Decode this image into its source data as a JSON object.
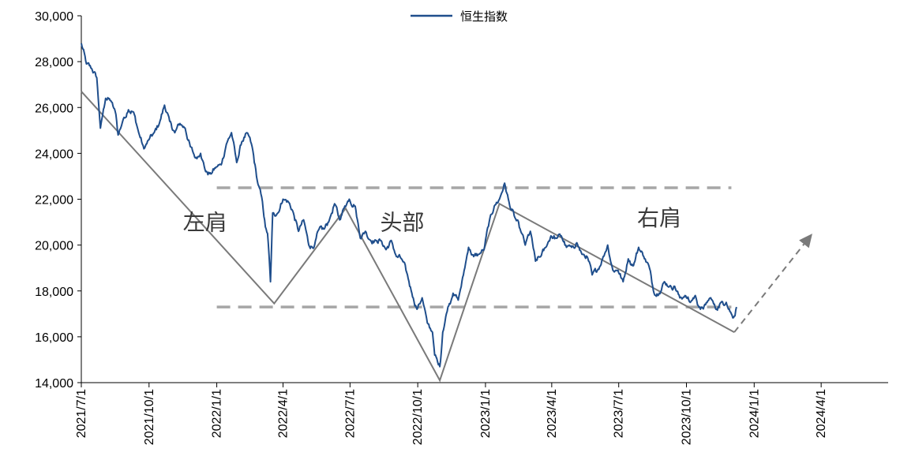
{
  "chart_data": {
    "type": "line",
    "title": "",
    "xlabel": "",
    "ylabel": "",
    "ylim": [
      14000,
      30000
    ],
    "yticks": [
      14000,
      16000,
      18000,
      20000,
      22000,
      24000,
      26000,
      28000,
      30000
    ],
    "ytick_labels": [
      "14,000",
      "16,000",
      "18,000",
      "20,000",
      "22,000",
      "24,000",
      "26,000",
      "28,000",
      "30,000"
    ],
    "xlim": [
      "2021-07-01",
      "2024-07-01"
    ],
    "xticks": [
      "2021-07-01",
      "2021-10-01",
      "2022-01-01",
      "2022-04-01",
      "2022-07-01",
      "2022-10-01",
      "2023-01-01",
      "2023-04-01",
      "2023-07-01",
      "2023-10-01",
      "2024-01-01",
      "2024-04-01"
    ],
    "xtick_labels": [
      "2021/7/1",
      "2021/10/1",
      "2022/1/1",
      "2022/4/1",
      "2022/7/1",
      "2022/10/1",
      "2023/1/1",
      "2023/4/1",
      "2023/7/1",
      "2023/10/1",
      "2024/1/1",
      "2024/4/1"
    ],
    "legend": "top-center",
    "grid": false,
    "series": [
      {
        "name": "恒生指数",
        "color": "#1f4e8c",
        "points": [
          [
            "2021-07-01",
            28800
          ],
          [
            "2021-07-08",
            27900
          ],
          [
            "2021-07-15",
            27700
          ],
          [
            "2021-07-22",
            27300
          ],
          [
            "2021-07-27",
            25100
          ],
          [
            "2021-08-03",
            26400
          ],
          [
            "2021-08-10",
            26300
          ],
          [
            "2021-08-17",
            25700
          ],
          [
            "2021-08-20",
            24800
          ],
          [
            "2021-08-27",
            25500
          ],
          [
            "2021-09-03",
            25900
          ],
          [
            "2021-09-10",
            25800
          ],
          [
            "2021-09-17",
            24900
          ],
          [
            "2021-09-24",
            24200
          ],
          [
            "2021-10-01",
            24600
          ],
          [
            "2021-10-08",
            24900
          ],
          [
            "2021-10-15",
            25300
          ],
          [
            "2021-10-22",
            26100
          ],
          [
            "2021-10-29",
            25400
          ],
          [
            "2021-11-05",
            24900
          ],
          [
            "2021-11-12",
            25300
          ],
          [
            "2021-11-19",
            25100
          ],
          [
            "2021-11-26",
            24300
          ],
          [
            "2021-12-03",
            23800
          ],
          [
            "2021-12-10",
            24000
          ],
          [
            "2021-12-17",
            23200
          ],
          [
            "2021-12-24",
            23100
          ],
          [
            "2021-12-31",
            23400
          ],
          [
            "2022-01-07",
            23500
          ],
          [
            "2022-01-14",
            24400
          ],
          [
            "2022-01-21",
            24900
          ],
          [
            "2022-01-28",
            23600
          ],
          [
            "2022-02-04",
            24500
          ],
          [
            "2022-02-11",
            24900
          ],
          [
            "2022-02-18",
            24300
          ],
          [
            "2022-02-25",
            22800
          ],
          [
            "2022-03-04",
            21900
          ],
          [
            "2022-03-08",
            20800
          ],
          [
            "2022-03-11",
            20500
          ],
          [
            "2022-03-15",
            18400
          ],
          [
            "2022-03-18",
            21400
          ],
          [
            "2022-03-25",
            21400
          ],
          [
            "2022-04-01",
            22000
          ],
          [
            "2022-04-08",
            21900
          ],
          [
            "2022-04-14",
            21500
          ],
          [
            "2022-04-22",
            20600
          ],
          [
            "2022-04-29",
            21100
          ],
          [
            "2022-05-06",
            20000
          ],
          [
            "2022-05-13",
            19900
          ],
          [
            "2022-05-20",
            20700
          ],
          [
            "2022-05-27",
            20700
          ],
          [
            "2022-06-03",
            21100
          ],
          [
            "2022-06-10",
            21800
          ],
          [
            "2022-06-17",
            21100
          ],
          [
            "2022-06-24",
            21700
          ],
          [
            "2022-06-30",
            22000
          ],
          [
            "2022-07-08",
            21700
          ],
          [
            "2022-07-15",
            20300
          ],
          [
            "2022-07-22",
            20600
          ],
          [
            "2022-07-29",
            20200
          ],
          [
            "2022-08-05",
            20200
          ],
          [
            "2022-08-12",
            20200
          ],
          [
            "2022-08-19",
            19800
          ],
          [
            "2022-08-26",
            20200
          ],
          [
            "2022-09-02",
            19500
          ],
          [
            "2022-09-09",
            19400
          ],
          [
            "2022-09-16",
            18800
          ],
          [
            "2022-09-23",
            17900
          ],
          [
            "2022-09-30",
            17200
          ],
          [
            "2022-10-07",
            17700
          ],
          [
            "2022-10-14",
            16600
          ],
          [
            "2022-10-21",
            16200
          ],
          [
            "2022-10-24",
            15200
          ],
          [
            "2022-10-28",
            14900
          ],
          [
            "2022-10-31",
            14700
          ],
          [
            "2022-11-04",
            16200
          ],
          [
            "2022-11-11",
            17300
          ],
          [
            "2022-11-18",
            17900
          ],
          [
            "2022-11-25",
            17600
          ],
          [
            "2022-12-02",
            18700
          ],
          [
            "2022-12-09",
            19900
          ],
          [
            "2022-12-16",
            19500
          ],
          [
            "2022-12-23",
            19600
          ],
          [
            "2022-12-30",
            19800
          ],
          [
            "2023-01-06",
            21000
          ],
          [
            "2023-01-13",
            21700
          ],
          [
            "2023-01-20",
            22000
          ],
          [
            "2023-01-27",
            22700
          ],
          [
            "2023-02-03",
            21700
          ],
          [
            "2023-02-10",
            21200
          ],
          [
            "2023-02-17",
            20700
          ],
          [
            "2023-02-24",
            20000
          ],
          [
            "2023-03-03",
            20600
          ],
          [
            "2023-03-10",
            19300
          ],
          [
            "2023-03-17",
            19500
          ],
          [
            "2023-03-24",
            19900
          ],
          [
            "2023-03-31",
            20400
          ],
          [
            "2023-04-07",
            20300
          ],
          [
            "2023-04-14",
            20400
          ],
          [
            "2023-04-21",
            19900
          ],
          [
            "2023-04-28",
            19900
          ],
          [
            "2023-05-05",
            20100
          ],
          [
            "2023-05-12",
            19600
          ],
          [
            "2023-05-19",
            19500
          ],
          [
            "2023-05-26",
            18700
          ],
          [
            "2023-06-02",
            18900
          ],
          [
            "2023-06-09",
            19400
          ],
          [
            "2023-06-16",
            20000
          ],
          [
            "2023-06-23",
            18900
          ],
          [
            "2023-06-30",
            18900
          ],
          [
            "2023-07-07",
            18400
          ],
          [
            "2023-07-14",
            19400
          ],
          [
            "2023-07-21",
            19100
          ],
          [
            "2023-07-28",
            19900
          ],
          [
            "2023-08-04",
            19500
          ],
          [
            "2023-08-11",
            19100
          ],
          [
            "2023-08-18",
            17900
          ],
          [
            "2023-08-25",
            17900
          ],
          [
            "2023-09-01",
            18400
          ],
          [
            "2023-09-08",
            18200
          ],
          [
            "2023-09-15",
            18200
          ],
          [
            "2023-09-22",
            17700
          ],
          [
            "2023-09-29",
            17800
          ],
          [
            "2023-10-06",
            17500
          ],
          [
            "2023-10-13",
            17800
          ],
          [
            "2023-10-20",
            17200
          ],
          [
            "2023-10-27",
            17400
          ],
          [
            "2023-11-03",
            17700
          ],
          [
            "2023-11-10",
            17200
          ],
          [
            "2023-11-17",
            17500
          ],
          [
            "2023-11-24",
            17500
          ],
          [
            "2023-12-01",
            17000
          ],
          [
            "2023-12-05",
            16900
          ],
          [
            "2023-12-08",
            17300
          ]
        ]
      }
    ],
    "annotations": [
      {
        "text": "左肩",
        "x": "2021-12-16",
        "y": 20650
      },
      {
        "text": "头部",
        "x": "2022-09-10",
        "y": 20650
      },
      {
        "text": "右肩",
        "x": "2023-08-25",
        "y": 20850
      }
    ],
    "pattern_lines": [
      {
        "role": "neckline-upper",
        "style": "dashed",
        "points": [
          [
            "2022-01-01",
            22500
          ],
          [
            "2023-12-01",
            22500
          ]
        ]
      },
      {
        "role": "neckline-lower",
        "style": "dashed",
        "points": [
          [
            "2022-01-01",
            17300
          ],
          [
            "2023-12-01",
            17300
          ]
        ]
      },
      {
        "role": "pattern",
        "style": "solid",
        "points": [
          [
            "2021-07-01",
            26700
          ],
          [
            "2022-03-20",
            17450
          ],
          [
            "2022-06-25",
            21600
          ],
          [
            "2022-10-31",
            14100
          ],
          [
            "2023-01-20",
            21800
          ],
          [
            "2023-12-05",
            16200
          ]
        ]
      },
      {
        "role": "projection",
        "style": "dashed-arrow",
        "points": [
          [
            "2023-12-05",
            16200
          ],
          [
            "2024-03-20",
            20500
          ]
        ]
      }
    ]
  }
}
